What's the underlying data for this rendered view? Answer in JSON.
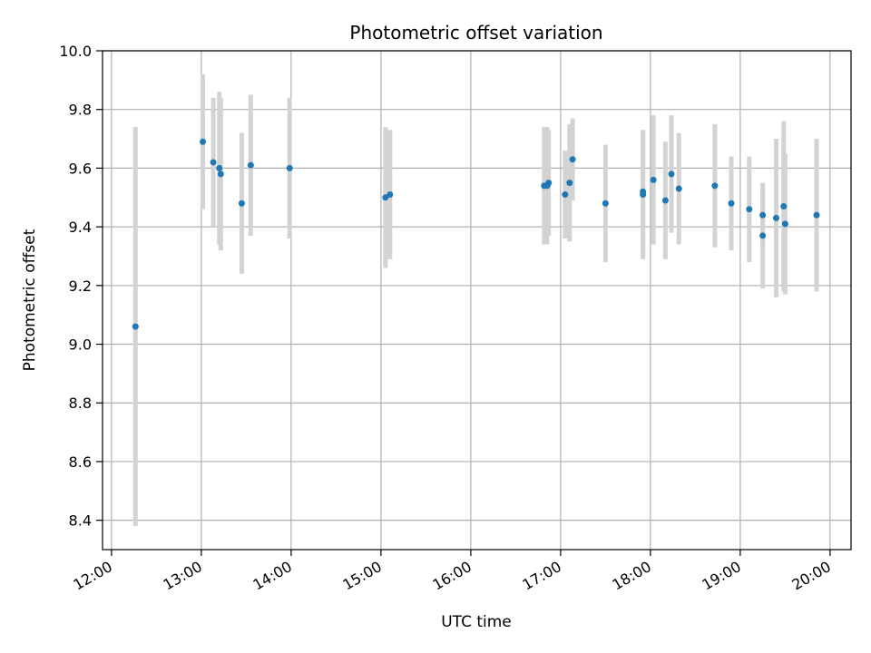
{
  "chart_data": {
    "type": "scatter",
    "title": "Photometric offset variation",
    "xlabel": "UTC time",
    "ylabel": "Photometric offset",
    "x_unit": "hours (UTC)",
    "xlim": [
      "11:54",
      "20:14"
    ],
    "ylim": [
      8.3,
      10.0
    ],
    "xticks": [
      "12:00",
      "13:00",
      "14:00",
      "15:00",
      "16:00",
      "17:00",
      "18:00",
      "19:00",
      "20:00"
    ],
    "yticks": [
      "8.4",
      "8.6",
      "8.8",
      "9.0",
      "9.2",
      "9.4",
      "9.6",
      "9.8",
      "10.0"
    ],
    "grid": true,
    "point_color": "#1f77b4",
    "errorbar_color": "#d3d3d3",
    "points": [
      {
        "t": "12:16",
        "y": 9.06,
        "err": 0.68
      },
      {
        "t": "13:01",
        "y": 9.69,
        "err": 0.23
      },
      {
        "t": "13:08",
        "y": 9.62,
        "err": 0.22
      },
      {
        "t": "13:12",
        "y": 9.6,
        "err": 0.26
      },
      {
        "t": "13:13",
        "y": 9.58,
        "err": 0.26
      },
      {
        "t": "13:27",
        "y": 9.48,
        "err": 0.24
      },
      {
        "t": "13:33",
        "y": 9.61,
        "err": 0.24
      },
      {
        "t": "13:59",
        "y": 9.6,
        "err": 0.24
      },
      {
        "t": "15:03",
        "y": 9.5,
        "err": 0.24
      },
      {
        "t": "15:06",
        "y": 9.51,
        "err": 0.22
      },
      {
        "t": "16:49",
        "y": 9.54,
        "err": 0.2
      },
      {
        "t": "16:51",
        "y": 9.54,
        "err": 0.2
      },
      {
        "t": "16:52",
        "y": 9.55,
        "err": 0.18
      },
      {
        "t": "17:03",
        "y": 9.51,
        "err": 0.15
      },
      {
        "t": "17:06",
        "y": 9.55,
        "err": 0.2
      },
      {
        "t": "17:08",
        "y": 9.63,
        "err": 0.14
      },
      {
        "t": "17:30",
        "y": 9.48,
        "err": 0.2
      },
      {
        "t": "17:55",
        "y": 9.51,
        "err": 0.22
      },
      {
        "t": "17:55",
        "y": 9.52,
        "err": 0.21
      },
      {
        "t": "18:02",
        "y": 9.56,
        "err": 0.22
      },
      {
        "t": "18:10",
        "y": 9.49,
        "err": 0.2
      },
      {
        "t": "18:14",
        "y": 9.58,
        "err": 0.2
      },
      {
        "t": "18:19",
        "y": 9.53,
        "err": 0.19
      },
      {
        "t": "18:43",
        "y": 9.54,
        "err": 0.21
      },
      {
        "t": "18:54",
        "y": 9.48,
        "err": 0.16
      },
      {
        "t": "19:06",
        "y": 9.46,
        "err": 0.18
      },
      {
        "t": "19:15",
        "y": 9.44,
        "err": 0.11
      },
      {
        "t": "19:15",
        "y": 9.37,
        "err": 0.18
      },
      {
        "t": "19:24",
        "y": 9.43,
        "err": 0.27
      },
      {
        "t": "19:29",
        "y": 9.47,
        "err": 0.29
      },
      {
        "t": "19:30",
        "y": 9.41,
        "err": 0.24
      },
      {
        "t": "19:51",
        "y": 9.44,
        "err": 0.26
      }
    ]
  }
}
